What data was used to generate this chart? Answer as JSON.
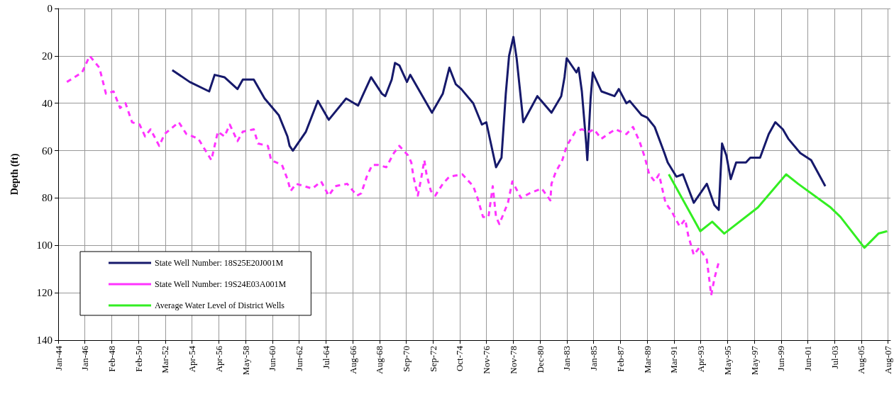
{
  "chart_data": {
    "type": "line",
    "ylabel": "Depth (ft)",
    "ylim": [
      140,
      0
    ],
    "yticks": [
      0,
      20,
      40,
      60,
      80,
      100,
      120,
      140
    ],
    "xlim": [
      "1944-01-01",
      "2007-11-01"
    ],
    "xticks": [
      {
        "value": "1944-01-01",
        "label": "Jan-44"
      },
      {
        "value": "1946-01-20",
        "label": "Jan-46"
      },
      {
        "value": "1948-02-09",
        "label": "Feb-48"
      },
      {
        "value": "1950-02-28",
        "label": "Feb-50"
      },
      {
        "value": "1952-03-19",
        "label": "Mar-52"
      },
      {
        "value": "1954-04-08",
        "label": "Apr-54"
      },
      {
        "value": "1956-04-27",
        "label": "Apr-56"
      },
      {
        "value": "1958-05-17",
        "label": "May-58"
      },
      {
        "value": "1960-06-05",
        "label": "Jun-60"
      },
      {
        "value": "1962-06-25",
        "label": "Jun-62"
      },
      {
        "value": "1964-07-14",
        "label": "Jul-64"
      },
      {
        "value": "1966-08-03",
        "label": "Aug-66"
      },
      {
        "value": "1968-08-22",
        "label": "Aug-68"
      },
      {
        "value": "1970-09-11",
        "label": "Sep-70"
      },
      {
        "value": "1972-09-30",
        "label": "Sep-72"
      },
      {
        "value": "1974-10-20",
        "label": "Oct-74"
      },
      {
        "value": "1976-11-08",
        "label": "Nov-76"
      },
      {
        "value": "1978-11-28",
        "label": "Nov-78"
      },
      {
        "value": "1980-12-17",
        "label": "Dec-80"
      },
      {
        "value": "1983-01-06",
        "label": "Jan-83"
      },
      {
        "value": "1985-01-25",
        "label": "Jan-85"
      },
      {
        "value": "1987-02-14",
        "label": "Feb-87"
      },
      {
        "value": "1989-03-05",
        "label": "Mar-89"
      },
      {
        "value": "1991-03-25",
        "label": "Mar-91"
      },
      {
        "value": "1993-04-13",
        "label": "Apr-93"
      },
      {
        "value": "1995-05-03",
        "label": "May-95"
      },
      {
        "value": "1997-05-22",
        "label": "May-97"
      },
      {
        "value": "1999-06-11",
        "label": "Jun-99"
      },
      {
        "value": "2001-06-30",
        "label": "Jun-01"
      },
      {
        "value": "2003-07-20",
        "label": "Jul-03"
      },
      {
        "value": "2005-08-08",
        "label": "Aug-05"
      },
      {
        "value": "2007-08-28",
        "label": "Aug-07"
      }
    ],
    "grid": true,
    "legend": "bottom left",
    "series": [
      {
        "name": "State Well Number: 18S25E20J001M",
        "color": "#16196b",
        "line_style": "solid",
        "x": [
          "1952-10",
          "1954-02",
          "1955-08",
          "1956-01",
          "1956-10",
          "1957-10",
          "1958-03",
          "1959-01",
          "1959-11",
          "1960-12",
          "1961-08",
          "1961-10",
          "1962-01",
          "1963-01",
          "1963-12",
          "1964-10",
          "1966-02",
          "1967-01",
          "1967-08",
          "1968-01",
          "1968-11",
          "1969-02",
          "1969-08",
          "1969-11",
          "1970-03",
          "1970-10",
          "1971-01",
          "1972-09",
          "1973-07",
          "1974-01",
          "1974-07",
          "1974-12",
          "1975-11",
          "1976-07",
          "1976-11",
          "1977-08",
          "1978-01",
          "1978-05",
          "1978-08",
          "1978-12",
          "1979-03",
          "1979-08",
          "1979-09",
          "1980-10",
          "1981-11",
          "1982-08",
          "1982-11",
          "1983-01",
          "1983-10",
          "1983-12",
          "1984-03",
          "1984-07",
          "1984-08",
          "1984-11",
          "1985-01",
          "1985-09",
          "1986-09",
          "1987-01",
          "1987-08",
          "1987-11",
          "1988-10",
          "1989-03",
          "1989-10",
          "1990-07",
          "1990-10",
          "1991-06",
          "1991-12",
          "1992-05",
          "1992-10",
          "1993-10",
          "1994-05",
          "1994-09",
          "1994-12",
          "1995-04",
          "1995-08",
          "1996-01",
          "1996-10",
          "1997-02",
          "1997-11",
          "1998-07",
          "1999-01",
          "1999-08",
          "2000-01",
          "2000-12",
          "2001-10",
          "2002-11"
        ],
        "values": [
          26,
          31,
          35,
          28,
          29,
          34,
          30,
          30,
          38,
          45,
          54,
          58,
          60,
          52,
          39,
          47,
          38,
          41,
          34,
          29,
          36,
          37,
          30,
          23,
          24,
          31,
          28,
          44,
          36,
          25,
          32,
          34,
          40,
          49,
          48,
          67,
          63,
          36,
          20,
          12,
          21,
          43,
          48,
          37,
          44,
          37,
          29,
          21,
          27,
          25,
          35,
          57,
          64,
          38,
          27,
          35,
          37,
          34,
          40,
          39,
          45,
          46,
          50,
          61,
          65,
          71,
          70,
          76,
          82,
          74,
          83,
          85,
          57,
          62,
          72,
          65,
          65,
          63,
          63,
          53,
          48,
          51,
          55,
          61,
          64,
          75
        ]
      },
      {
        "name": "State Well Number: 19S24E03A001M",
        "color": "#ff33ff",
        "line_style": "dashed",
        "x": [
          "1944-09",
          "1945-11",
          "1946-06",
          "1947-03",
          "1947-09",
          "1948-04",
          "1948-10",
          "1949-03",
          "1949-09",
          "1950-04",
          "1950-09",
          "1951-02",
          "1951-10",
          "1952-03",
          "1953-04",
          "1953-11",
          "1954-05",
          "1954-10",
          "1955-10",
          "1956-04",
          "1956-10",
          "1957-03",
          "1957-10",
          "1958-03",
          "1959-01",
          "1959-05",
          "1960-02",
          "1960-05",
          "1961-03",
          "1961-08",
          "1961-11",
          "1962-04",
          "1963-07",
          "1964-03",
          "1964-10",
          "1965-04",
          "1966-03",
          "1966-12",
          "1967-04",
          "1967-09",
          "1968-02",
          "1968-07",
          "1969-03",
          "1969-10",
          "1970-03",
          "1970-11",
          "1971-02",
          "1971-04",
          "1971-08",
          "1971-11",
          "1972-02",
          "1972-04",
          "1972-08",
          "1972-12",
          "1973-07",
          "1974-01",
          "1975-01",
          "1975-11",
          "1976-03",
          "1976-08",
          "1977-01",
          "1977-05",
          "1977-08",
          "1977-11",
          "1978-07",
          "1978-11",
          "1979-07",
          "1980-03",
          "1981-02",
          "1981-10",
          "1981-11",
          "1982-03",
          "1982-09",
          "1983-01",
          "1983-09",
          "1984-03",
          "1984-10",
          "1985-02",
          "1985-09",
          "1986-03",
          "1986-10",
          "1987-08",
          "1988-02",
          "1988-08",
          "1989-01",
          "1989-05",
          "1989-10",
          "1990-02",
          "1990-05",
          "1990-08",
          "1991-02",
          "1991-09",
          "1992-02",
          "1992-05",
          "1992-10",
          "1993-03",
          "1993-10",
          "1994-02",
          "1994-05",
          "1994-09"
        ],
        "values": [
          31,
          27,
          20,
          25,
          36,
          35,
          42,
          40,
          48,
          49,
          54,
          51,
          58,
          53,
          48,
          53,
          54,
          55,
          64,
          52,
          54,
          49,
          56,
          52,
          51,
          57,
          58,
          64,
          66,
          72,
          77,
          74,
          76,
          73,
          79,
          75,
          74,
          79,
          78,
          71,
          66,
          66,
          67,
          61,
          58,
          62,
          65,
          71,
          79,
          72,
          64,
          70,
          77,
          79,
          74,
          71,
          70,
          75,
          80,
          88,
          88,
          75,
          88,
          91,
          82,
          73,
          80,
          78,
          76,
          81,
          74,
          69,
          64,
          58,
          52,
          51,
          52,
          51,
          55,
          53,
          51,
          53,
          50,
          56,
          63,
          70,
          73,
          70,
          76,
          82,
          86,
          92,
          89,
          96,
          104,
          101,
          106,
          121,
          114,
          107
        ]
      },
      {
        "name": "Average Water Level of District Wells",
        "color": "#33ee22",
        "line_style": "solid",
        "x": [
          "1990-11",
          "1993-04",
          "1994-03",
          "1995-02",
          "1997-09",
          "1999-11",
          "2000-10",
          "2003-04",
          "2004-01",
          "2005-11",
          "2006-12",
          "2007-08"
        ],
        "values": [
          70,
          94,
          90,
          95,
          84,
          70,
          74,
          84,
          88,
          101,
          95,
          94
        ]
      }
    ]
  }
}
